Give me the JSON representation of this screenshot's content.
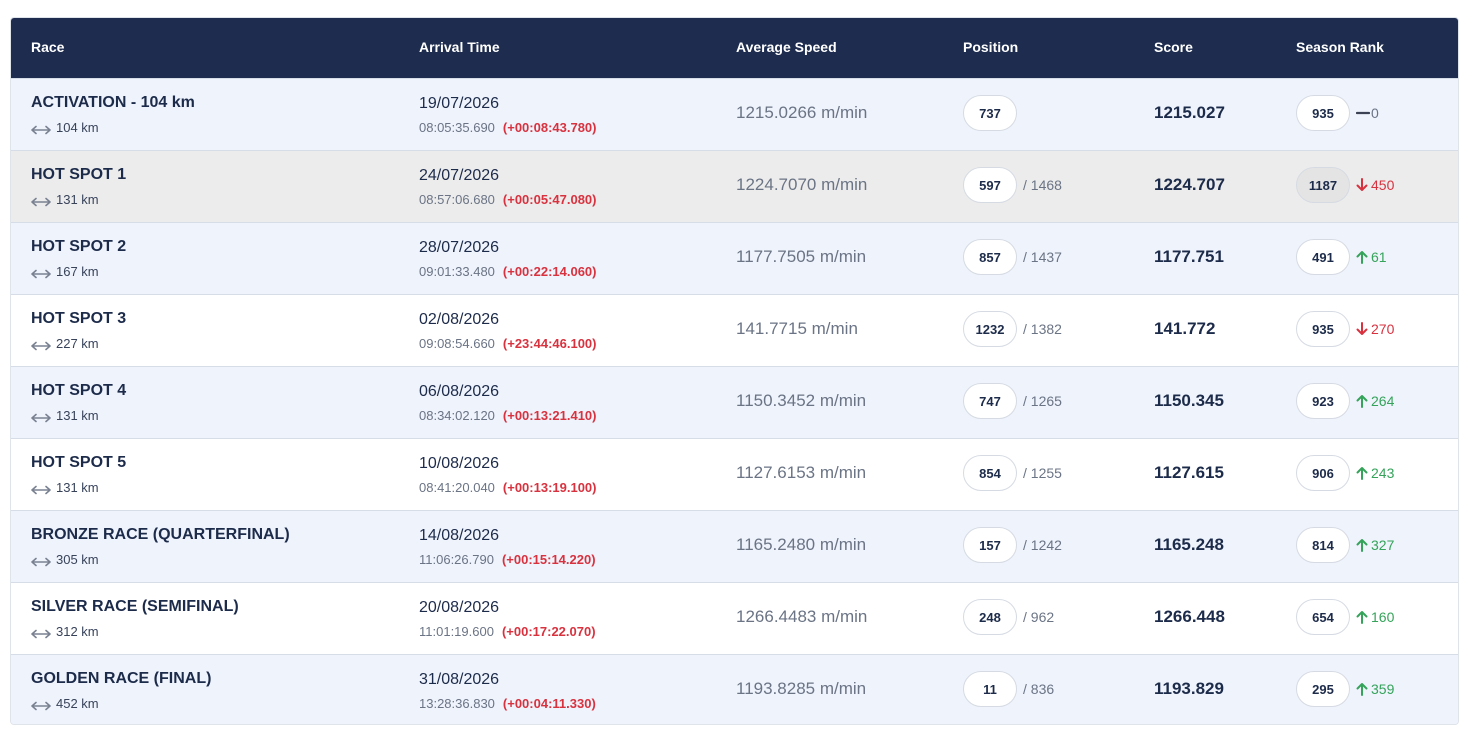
{
  "headers": {
    "race": "Race",
    "arrival_time": "Arrival Time",
    "average_speed": "Average Speed",
    "position": "Position",
    "score": "Score",
    "season_rank": "Season Rank"
  },
  "colors": {
    "header_bg": "#1e2d4f",
    "row_blue": "#eef3fc",
    "row_gray": "#ececec",
    "delta_red": "#d8323f",
    "up_green": "#35a35a",
    "down_red": "#d8323f"
  },
  "rows": [
    {
      "name": "ACTIVATION - 104 km",
      "distance": "104 km",
      "date": "19/07/2026",
      "time": "08:05:35.690",
      "delta": "(+00:08:43.780)",
      "speed": "1215.0266 m/min",
      "position": "737",
      "total": "",
      "score": "1215.027",
      "rank": "935",
      "change": "0",
      "direction": "same",
      "bg": "blue",
      "rank_pill": "light"
    },
    {
      "name": "HOT SPOT 1",
      "distance": "131 km",
      "date": "24/07/2026",
      "time": "08:57:06.680",
      "delta": "(+00:05:47.080)",
      "speed": "1224.7070 m/min",
      "position": "597",
      "total": "/ 1468",
      "score": "1224.707",
      "rank": "1187",
      "change": "450",
      "direction": "down",
      "bg": "gray",
      "rank_pill": "dark"
    },
    {
      "name": "HOT SPOT 2",
      "distance": "167 km",
      "date": "28/07/2026",
      "time": "09:01:33.480",
      "delta": "(+00:22:14.060)",
      "speed": "1177.7505 m/min",
      "position": "857",
      "total": "/ 1437",
      "score": "1177.751",
      "rank": "491",
      "change": "61",
      "direction": "up",
      "bg": "blue",
      "rank_pill": "light"
    },
    {
      "name": "HOT SPOT 3",
      "distance": "227 km",
      "date": "02/08/2026",
      "time": "09:08:54.660",
      "delta": "(+23:44:46.100)",
      "speed": "141.7715 m/min",
      "position": "1232",
      "total": "/ 1382",
      "score": "141.772",
      "rank": "935",
      "change": "270",
      "direction": "down",
      "bg": "white",
      "rank_pill": "light"
    },
    {
      "name": "HOT SPOT 4",
      "distance": "131 km",
      "date": "06/08/2026",
      "time": "08:34:02.120",
      "delta": "(+00:13:21.410)",
      "speed": "1150.3452 m/min",
      "position": "747",
      "total": "/ 1265",
      "score": "1150.345",
      "rank": "923",
      "change": "264",
      "direction": "up",
      "bg": "blue",
      "rank_pill": "light"
    },
    {
      "name": "HOT SPOT 5",
      "distance": "131 km",
      "date": "10/08/2026",
      "time": "08:41:20.040",
      "delta": "(+00:13:19.100)",
      "speed": "1127.6153 m/min",
      "position": "854",
      "total": "/ 1255",
      "score": "1127.615",
      "rank": "906",
      "change": "243",
      "direction": "up",
      "bg": "white",
      "rank_pill": "light"
    },
    {
      "name": "BRONZE RACE (QUARTERFINAL)",
      "distance": "305 km",
      "date": "14/08/2026",
      "time": "11:06:26.790",
      "delta": "(+00:15:14.220)",
      "speed": "1165.2480 m/min",
      "position": "157",
      "total": "/ 1242",
      "score": "1165.248",
      "rank": "814",
      "change": "327",
      "direction": "up",
      "bg": "blue",
      "rank_pill": "light"
    },
    {
      "name": "SILVER RACE (SEMIFINAL)",
      "distance": "312 km",
      "date": "20/08/2026",
      "time": "11:01:19.600",
      "delta": "(+00:17:22.070)",
      "speed": "1266.4483 m/min",
      "position": "248",
      "total": "/ 962",
      "score": "1266.448",
      "rank": "654",
      "change": "160",
      "direction": "up",
      "bg": "white",
      "rank_pill": "light"
    },
    {
      "name": "GOLDEN RACE (FINAL)",
      "distance": "452 km",
      "date": "31/08/2026",
      "time": "13:28:36.830",
      "delta": "(+00:04:11.330)",
      "speed": "1193.8285 m/min",
      "position": "11",
      "total": "/ 836",
      "score": "1193.829",
      "rank": "295",
      "change": "359",
      "direction": "up",
      "bg": "blue",
      "rank_pill": "light"
    }
  ]
}
